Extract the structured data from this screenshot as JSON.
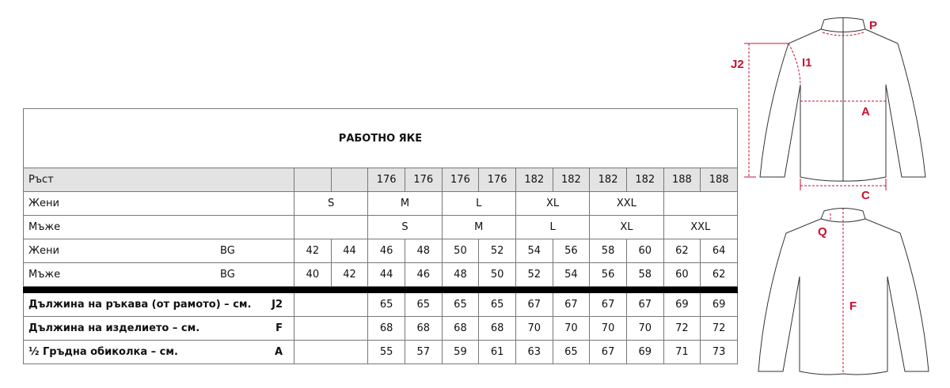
{
  "title": "РАБОТНО ЯКЕ",
  "rows": {
    "height": {
      "label": "Ръст",
      "values": [
        "",
        "",
        "176",
        "176",
        "176",
        "176",
        "182",
        "182",
        "182",
        "182",
        "188",
        "188"
      ]
    },
    "women_sizes": {
      "label": "Жени",
      "values": [
        "S",
        "M",
        "L",
        "XL",
        "XXL",
        ""
      ]
    },
    "men_sizes": {
      "label": "Мъже",
      "values": [
        "",
        "S",
        "M",
        "L",
        "XL",
        "XXL"
      ]
    },
    "women_bg": {
      "label": "Жени",
      "code": "BG",
      "values": [
        "42",
        "44",
        "46",
        "48",
        "50",
        "52",
        "54",
        "56",
        "58",
        "60",
        "62",
        "64"
      ]
    },
    "men_bg": {
      "label": "Мъже",
      "code": "BG",
      "values": [
        "40",
        "42",
        "44",
        "46",
        "48",
        "50",
        "52",
        "54",
        "56",
        "58",
        "60",
        "62"
      ]
    }
  },
  "measurements": [
    {
      "label": "Дължина на  ръкава (от рамото) – см.",
      "code": "J2",
      "values": [
        "65",
        "65",
        "65",
        "65",
        "67",
        "67",
        "67",
        "67",
        "69",
        "69"
      ]
    },
    {
      "label": "Дължина на изделието – см.",
      "code": "F",
      "values": [
        "68",
        "68",
        "68",
        "68",
        "70",
        "70",
        "70",
        "70",
        "72",
        "72"
      ]
    },
    {
      "label": "½ Гръдна обиколка – см.",
      "code": "A",
      "values": [
        "55",
        "57",
        "59",
        "61",
        "63",
        "65",
        "67",
        "69",
        "71",
        "73"
      ]
    }
  ],
  "diagram": {
    "labels": {
      "p": "P",
      "j2": "J2",
      "i1": "I1",
      "a": "A",
      "c": "C",
      "q": "Q",
      "f": "F"
    },
    "accent_color": "#c8102e"
  }
}
